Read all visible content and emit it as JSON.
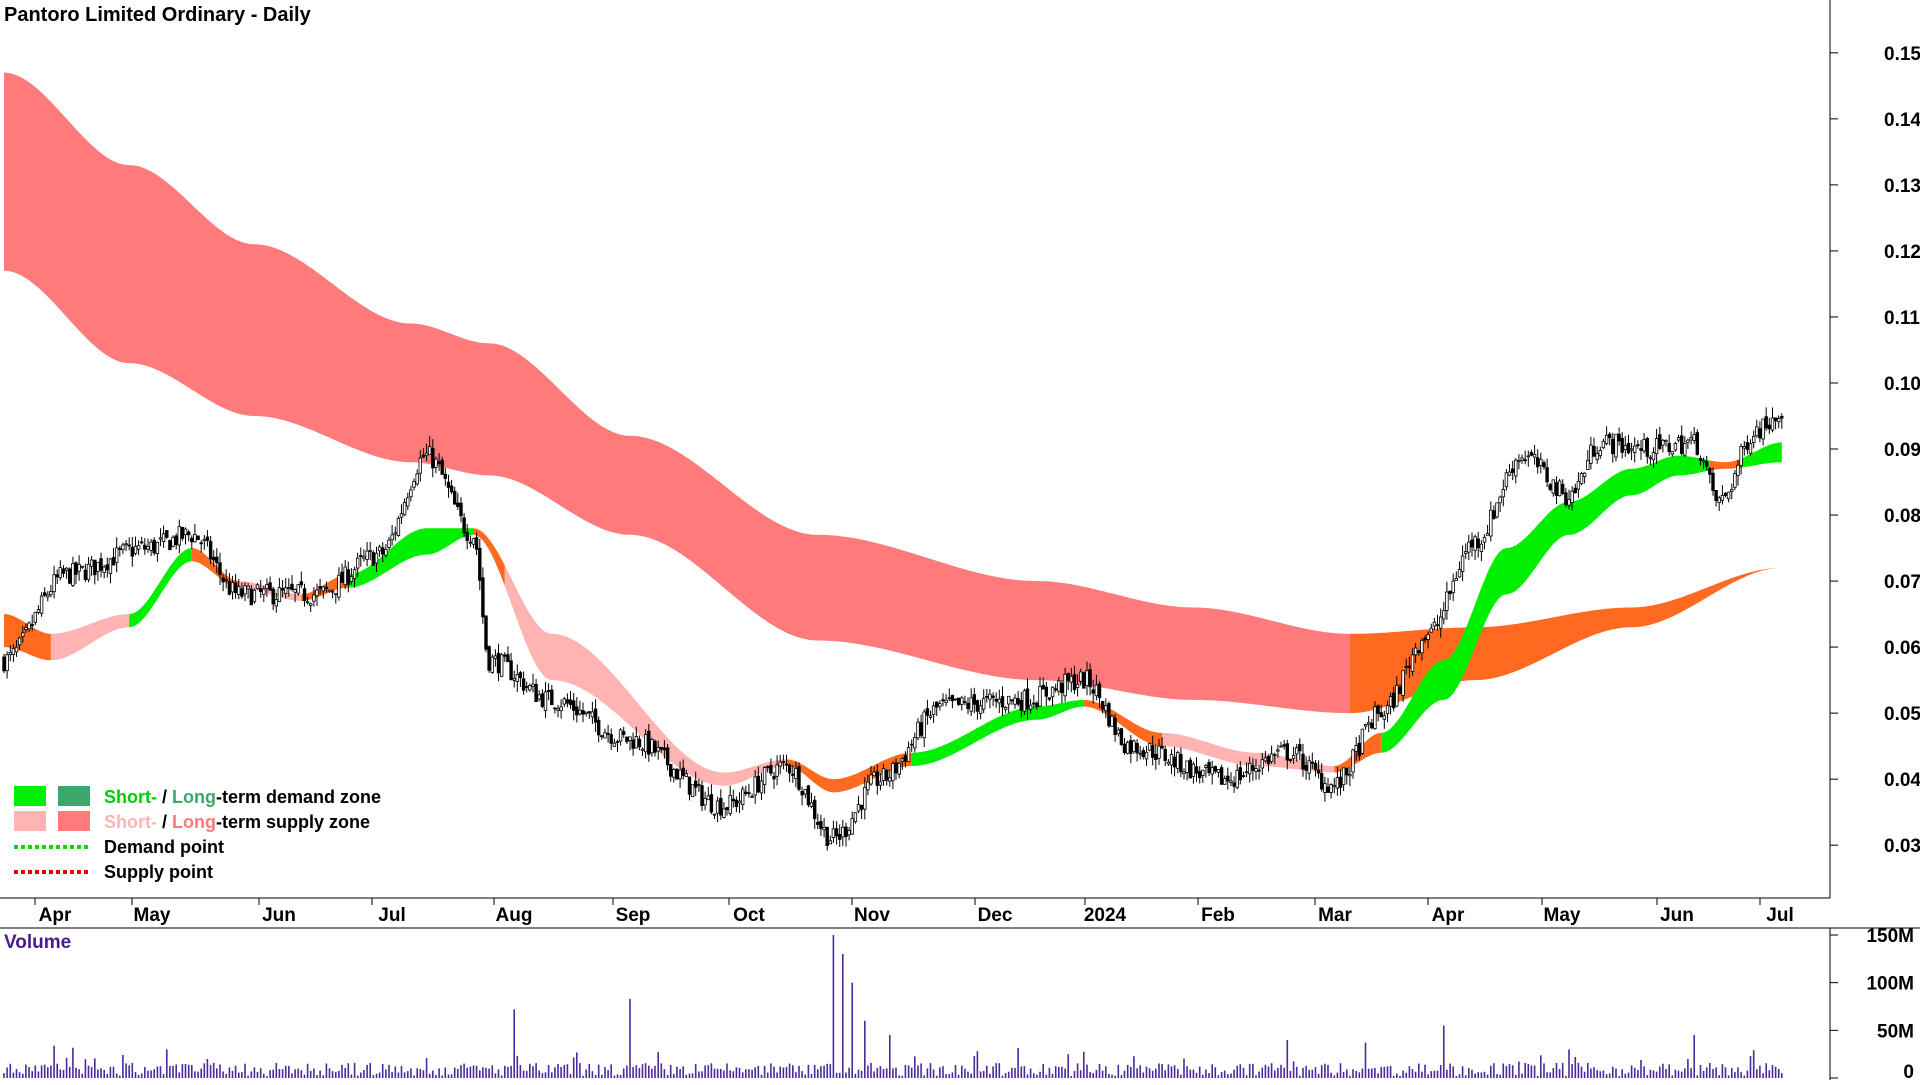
{
  "chart_data": {
    "type": "candlestick",
    "title": "Pantoro Limited Ordinary - Daily",
    "x_labels": [
      "Apr",
      "May",
      "Jun",
      "Jul",
      "Aug",
      "Sep",
      "Oct",
      "Nov",
      "Dec",
      "2024",
      "Feb",
      "Mar",
      "Apr",
      "May",
      "Jun",
      "Jul"
    ],
    "price_axis": {
      "ylim": [
        0.022,
        0.158
      ],
      "ticks": [
        "0.15",
        "0.14",
        "0.13",
        "0.12",
        "0.11",
        "0.10",
        "0.09",
        "0.08",
        "0.07",
        "0.06",
        "0.05",
        "0.04",
        "0.03"
      ]
    },
    "volume_panel": {
      "label": "Volume",
      "ylim": [
        0,
        150
      ],
      "ticks": [
        "150M",
        "100M",
        "50M",
        "0"
      ]
    },
    "legend": {
      "placement": "lower-left",
      "zones": [
        {
          "short": "Short-",
          "sep": " / ",
          "long": "Long",
          "suffix": "-term demand zone",
          "short_color": "#00ee00",
          "long_color": "#3aa86a"
        },
        {
          "short": "Short-",
          "sep": " / ",
          "long": "Long",
          "suffix": "-term supply zone",
          "short_color": "#ffb3b3",
          "long_color": "#ff7a7a"
        }
      ],
      "points": [
        {
          "label": "Demand point",
          "color": "#00dd00"
        },
        {
          "label": "Supply point",
          "color": "#dd0000"
        }
      ]
    },
    "colors": {
      "long_supply": "#ff7a7a",
      "short_supply": "#ffb3b3",
      "short_demand": "#00ee00",
      "orange": "#ff6a20",
      "candle": "#000000",
      "volume": "#4b2a9a"
    },
    "price_anchors": [
      [
        0,
        0.058
      ],
      [
        20,
        0.071
      ],
      [
        45,
        0.075
      ],
      [
        60,
        0.077
      ],
      [
        75,
        0.068
      ],
      [
        100,
        0.068
      ],
      [
        120,
        0.074
      ],
      [
        135,
        0.089
      ],
      [
        150,
        0.077
      ],
      [
        155,
        0.058
      ],
      [
        175,
        0.052
      ],
      [
        200,
        0.046
      ],
      [
        230,
        0.036
      ],
      [
        250,
        0.042
      ],
      [
        265,
        0.031
      ],
      [
        280,
        0.04
      ],
      [
        300,
        0.051
      ],
      [
        325,
        0.052
      ],
      [
        345,
        0.055
      ],
      [
        360,
        0.045
      ],
      [
        390,
        0.04
      ],
      [
        410,
        0.044
      ],
      [
        425,
        0.039
      ],
      [
        440,
        0.05
      ],
      [
        455,
        0.062
      ],
      [
        470,
        0.076
      ],
      [
        485,
        0.089
      ],
      [
        500,
        0.083
      ],
      [
        510,
        0.091
      ],
      [
        525,
        0.09
      ],
      [
        540,
        0.091
      ],
      [
        548,
        0.082
      ],
      [
        560,
        0.093
      ],
      [
        568,
        0.096
      ]
    ],
    "zones": {
      "long_supply_upper": [
        [
          0,
          0.147
        ],
        [
          40,
          0.133
        ],
        [
          80,
          0.121
        ],
        [
          130,
          0.109
        ],
        [
          155,
          0.106
        ],
        [
          200,
          0.092
        ],
        [
          260,
          0.077
        ],
        [
          330,
          0.07
        ],
        [
          380,
          0.066
        ],
        [
          430,
          0.062
        ]
      ],
      "long_supply_lower": [
        [
          0,
          0.117
        ],
        [
          40,
          0.103
        ],
        [
          80,
          0.095
        ],
        [
          130,
          0.088
        ],
        [
          155,
          0.086
        ],
        [
          200,
          0.077
        ],
        [
          260,
          0.061
        ],
        [
          330,
          0.055
        ],
        [
          380,
          0.052
        ],
        [
          430,
          0.05
        ]
      ],
      "short_upper": [
        [
          0,
          0.065
        ],
        [
          15,
          0.062
        ],
        [
          40,
          0.065
        ],
        [
          60,
          0.075
        ],
        [
          75,
          0.07
        ],
        [
          95,
          0.068
        ],
        [
          110,
          0.071
        ],
        [
          135,
          0.078
        ],
        [
          150,
          0.078
        ],
        [
          175,
          0.062
        ],
        [
          230,
          0.041
        ],
        [
          250,
          0.043
        ],
        [
          265,
          0.04
        ],
        [
          290,
          0.044
        ],
        [
          330,
          0.051
        ],
        [
          345,
          0.052
        ],
        [
          370,
          0.047
        ],
        [
          400,
          0.044
        ],
        [
          425,
          0.042
        ],
        [
          440,
          0.047
        ],
        [
          460,
          0.058
        ],
        [
          480,
          0.075
        ],
        [
          500,
          0.082
        ],
        [
          520,
          0.087
        ],
        [
          535,
          0.089
        ],
        [
          550,
          0.088
        ],
        [
          568,
          0.091
        ]
      ],
      "short_lower": [
        [
          0,
          0.06
        ],
        [
          15,
          0.058
        ],
        [
          40,
          0.063
        ],
        [
          60,
          0.073
        ],
        [
          75,
          0.069
        ],
        [
          95,
          0.067
        ],
        [
          110,
          0.069
        ],
        [
          135,
          0.074
        ],
        [
          150,
          0.077
        ],
        [
          175,
          0.055
        ],
        [
          230,
          0.039
        ],
        [
          250,
          0.042
        ],
        [
          265,
          0.038
        ],
        [
          290,
          0.042
        ],
        [
          330,
          0.049
        ],
        [
          345,
          0.051
        ],
        [
          370,
          0.045
        ],
        [
          400,
          0.042
        ],
        [
          425,
          0.041
        ],
        [
          440,
          0.044
        ],
        [
          460,
          0.052
        ],
        [
          480,
          0.068
        ],
        [
          500,
          0.077
        ],
        [
          520,
          0.083
        ],
        [
          535,
          0.086
        ],
        [
          550,
          0.087
        ],
        [
          568,
          0.088
        ]
      ],
      "long_demand_upper": [
        [
          430,
          0.062
        ],
        [
          470,
          0.063
        ],
        [
          520,
          0.066
        ],
        [
          568,
          0.072
        ]
      ],
      "long_demand_lower": [
        [
          430,
          0.05
        ],
        [
          470,
          0.055
        ],
        [
          520,
          0.063
        ],
        [
          568,
          0.072
        ]
      ]
    },
    "volume_spikes": [
      [
        16,
        34
      ],
      [
        52,
        30
      ],
      [
        163,
        72
      ],
      [
        200,
        83
      ],
      [
        265,
        150
      ],
      [
        268,
        130
      ],
      [
        271,
        100
      ],
      [
        275,
        60
      ],
      [
        283,
        45
      ],
      [
        340,
        25
      ],
      [
        410,
        40
      ],
      [
        435,
        37
      ],
      [
        460,
        55
      ],
      [
        500,
        30
      ],
      [
        540,
        45
      ]
    ]
  }
}
